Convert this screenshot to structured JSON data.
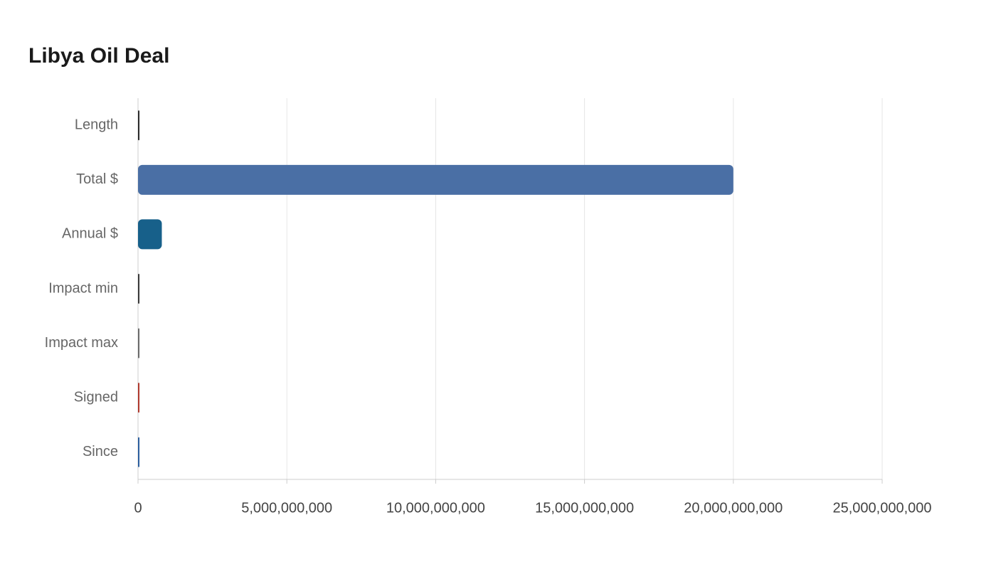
{
  "chart_data": {
    "type": "hbar",
    "title": "Libya Oil Deal",
    "categories": [
      "Length",
      "Total $",
      "Annual $",
      "Impact min",
      "Impact max",
      "Signed",
      "Since"
    ],
    "values": [
      0,
      20000000000,
      800000000,
      0,
      0,
      0,
      0
    ],
    "colors": [
      "#2b2b2b",
      "#4a6fa5",
      "#17608a",
      "#3a3a3a",
      "#6b6b6b",
      "#b03a2e",
      "#2c5f9e"
    ],
    "xlim": [
      0,
      25000000000
    ],
    "xticks": [
      0,
      {
        "value": 5000000000,
        "label": "5,000,000,000"
      },
      {
        "value": 10000000000,
        "label": "10,000,000,000"
      },
      {
        "value": 15000000000,
        "label": "15,000,000,000"
      },
      {
        "value": 20000000000,
        "label": "20,000,000,000"
      },
      {
        "value": 25000000000,
        "label": "25,000,000,000"
      }
    ],
    "grid": true
  }
}
